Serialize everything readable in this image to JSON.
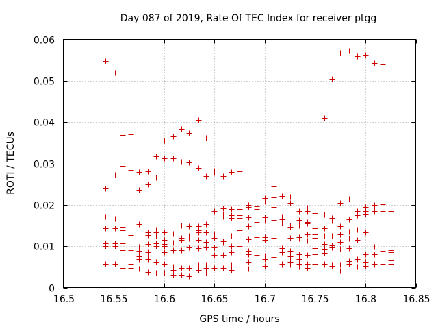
{
  "chart_data": {
    "type": "scatter",
    "title": "Day 087 of 2019, Rate Of TEC Index for receiver ptgg",
    "xlabel": "GPS time / hours",
    "ylabel": "ROTI / TECUs",
    "xlim": [
      16.5,
      16.85
    ],
    "ylim": [
      0,
      0.06
    ],
    "xticks": [
      16.5,
      16.55,
      16.6,
      16.65,
      16.7,
      16.75,
      16.8,
      16.85
    ],
    "xtick_labels": [
      "16.5",
      "16.55",
      "16.6",
      "16.65",
      "16.7",
      "16.75",
      "16.8",
      "16.85"
    ],
    "yticks": [
      0,
      0.01,
      0.02,
      0.03,
      0.04,
      0.05,
      0.06
    ],
    "ytick_labels": [
      "0",
      "0.01",
      "0.02",
      "0.03",
      "0.04",
      "0.05",
      "0.06"
    ],
    "grid": true,
    "marker": "+",
    "color": "#cc0000",
    "series": [
      {
        "name": "ROTI",
        "points": [
          [
            16.542,
            0.0547
          ],
          [
            16.542,
            0.0239
          ],
          [
            16.542,
            0.0172
          ],
          [
            16.542,
            0.0143
          ],
          [
            16.542,
            0.0107
          ],
          [
            16.542,
            0.01
          ],
          [
            16.542,
            0.0058
          ],
          [
            16.551,
            0.0519
          ],
          [
            16.551,
            0.0273
          ],
          [
            16.551,
            0.0166
          ],
          [
            16.551,
            0.0143
          ],
          [
            16.551,
            0.0107
          ],
          [
            16.551,
            0.01
          ],
          [
            16.551,
            0.0058
          ],
          [
            16.559,
            0.0369
          ],
          [
            16.559,
            0.0295
          ],
          [
            16.559,
            0.0146
          ],
          [
            16.559,
            0.0138
          ],
          [
            16.559,
            0.0107
          ],
          [
            16.559,
            0.009
          ],
          [
            16.559,
            0.0048
          ],
          [
            16.567,
            0.0371
          ],
          [
            16.567,
            0.0284
          ],
          [
            16.567,
            0.015
          ],
          [
            16.567,
            0.0126
          ],
          [
            16.567,
            0.0108
          ],
          [
            16.567,
            0.009
          ],
          [
            16.567,
            0.0058
          ],
          [
            16.567,
            0.0048
          ],
          [
            16.575,
            0.028
          ],
          [
            16.575,
            0.0237
          ],
          [
            16.575,
            0.0153
          ],
          [
            16.575,
            0.0098
          ],
          [
            16.575,
            0.0088
          ],
          [
            16.575,
            0.0075
          ],
          [
            16.575,
            0.0068
          ],
          [
            16.575,
            0.0045
          ],
          [
            16.584,
            0.0281
          ],
          [
            16.584,
            0.025
          ],
          [
            16.584,
            0.0133
          ],
          [
            16.584,
            0.0127
          ],
          [
            16.584,
            0.0105
          ],
          [
            16.584,
            0.0085
          ],
          [
            16.584,
            0.0072
          ],
          [
            16.584,
            0.0068
          ],
          [
            16.584,
            0.0037
          ],
          [
            16.592,
            0.0318
          ],
          [
            16.592,
            0.0266
          ],
          [
            16.592,
            0.014
          ],
          [
            16.592,
            0.0133
          ],
          [
            16.592,
            0.0125
          ],
          [
            16.592,
            0.0107
          ],
          [
            16.592,
            0.01
          ],
          [
            16.592,
            0.0062
          ],
          [
            16.592,
            0.0035
          ],
          [
            16.6,
            0.0355
          ],
          [
            16.6,
            0.0313
          ],
          [
            16.6,
            0.0133
          ],
          [
            16.6,
            0.0115
          ],
          [
            16.6,
            0.0105
          ],
          [
            16.6,
            0.01
          ],
          [
            16.6,
            0.0085
          ],
          [
            16.6,
            0.0058
          ],
          [
            16.6,
            0.0035
          ],
          [
            16.609,
            0.0366
          ],
          [
            16.609,
            0.0312
          ],
          [
            16.609,
            0.013
          ],
          [
            16.609,
            0.0108
          ],
          [
            16.609,
            0.009
          ],
          [
            16.609,
            0.005
          ],
          [
            16.609,
            0.0042
          ],
          [
            16.609,
            0.003
          ],
          [
            16.617,
            0.0384
          ],
          [
            16.617,
            0.0304
          ],
          [
            16.617,
            0.015
          ],
          [
            16.617,
            0.012
          ],
          [
            16.617,
            0.0115
          ],
          [
            16.617,
            0.009
          ],
          [
            16.617,
            0.0048
          ],
          [
            16.617,
            0.003
          ],
          [
            16.625,
            0.0373
          ],
          [
            16.625,
            0.0302
          ],
          [
            16.625,
            0.0149
          ],
          [
            16.625,
            0.0125
          ],
          [
            16.625,
            0.0118
          ],
          [
            16.625,
            0.0097
          ],
          [
            16.625,
            0.0048
          ],
          [
            16.625,
            0.0027
          ],
          [
            16.634,
            0.0405
          ],
          [
            16.634,
            0.029
          ],
          [
            16.634,
            0.0148
          ],
          [
            16.634,
            0.0138
          ],
          [
            16.634,
            0.0133
          ],
          [
            16.634,
            0.0115
          ],
          [
            16.634,
            0.0095
          ],
          [
            16.634,
            0.0055
          ],
          [
            16.634,
            0.0042
          ],
          [
            16.642,
            0.0362
          ],
          [
            16.642,
            0.027
          ],
          [
            16.642,
            0.0153
          ],
          [
            16.642,
            0.0133
          ],
          [
            16.642,
            0.011
          ],
          [
            16.642,
            0.0097
          ],
          [
            16.642,
            0.0055
          ],
          [
            16.642,
            0.0048
          ],
          [
            16.642,
            0.0035
          ],
          [
            16.65,
            0.0283
          ],
          [
            16.65,
            0.0277
          ],
          [
            16.65,
            0.0185
          ],
          [
            16.65,
            0.013
          ],
          [
            16.65,
            0.012
          ],
          [
            16.65,
            0.0097
          ],
          [
            16.65,
            0.0078
          ],
          [
            16.65,
            0.0048
          ],
          [
            16.659,
            0.027
          ],
          [
            16.659,
            0.0192
          ],
          [
            16.659,
            0.0177
          ],
          [
            16.659,
            0.0171
          ],
          [
            16.659,
            0.0112
          ],
          [
            16.659,
            0.0108
          ],
          [
            16.659,
            0.0078
          ],
          [
            16.659,
            0.0048
          ],
          [
            16.667,
            0.028
          ],
          [
            16.667,
            0.019
          ],
          [
            16.667,
            0.0175
          ],
          [
            16.667,
            0.0168
          ],
          [
            16.667,
            0.0125
          ],
          [
            16.667,
            0.01
          ],
          [
            16.667,
            0.0085
          ],
          [
            16.667,
            0.0055
          ],
          [
            16.667,
            0.0042
          ],
          [
            16.675,
            0.0281
          ],
          [
            16.675,
            0.019
          ],
          [
            16.675,
            0.0175
          ],
          [
            16.675,
            0.0168
          ],
          [
            16.675,
            0.0138
          ],
          [
            16.675,
            0.01
          ],
          [
            16.675,
            0.0077
          ],
          [
            16.675,
            0.0055
          ],
          [
            16.675,
            0.005
          ],
          [
            16.684,
            0.02
          ],
          [
            16.684,
            0.0195
          ],
          [
            16.684,
            0.017
          ],
          [
            16.684,
            0.0148
          ],
          [
            16.684,
            0.0117
          ],
          [
            16.684,
            0.0088
          ],
          [
            16.684,
            0.008
          ],
          [
            16.684,
            0.0062
          ],
          [
            16.684,
            0.0045
          ],
          [
            16.692,
            0.022
          ],
          [
            16.692,
            0.0197
          ],
          [
            16.692,
            0.019
          ],
          [
            16.692,
            0.0158
          ],
          [
            16.692,
            0.0122
          ],
          [
            16.692,
            0.0098
          ],
          [
            16.692,
            0.0078
          ],
          [
            16.692,
            0.0072
          ],
          [
            16.692,
            0.006
          ],
          [
            16.7,
            0.0217
          ],
          [
            16.7,
            0.0208
          ],
          [
            16.7,
            0.017
          ],
          [
            16.7,
            0.0162
          ],
          [
            16.7,
            0.0122
          ],
          [
            16.7,
            0.0115
          ],
          [
            16.7,
            0.0077
          ],
          [
            16.7,
            0.0068
          ],
          [
            16.7,
            0.0053
          ],
          [
            16.709,
            0.0245
          ],
          [
            16.709,
            0.0218
          ],
          [
            16.709,
            0.0195
          ],
          [
            16.709,
            0.0163
          ],
          [
            16.709,
            0.0125
          ],
          [
            16.709,
            0.012
          ],
          [
            16.709,
            0.0073
          ],
          [
            16.709,
            0.006
          ],
          [
            16.709,
            0.0055
          ],
          [
            16.717,
            0.0222
          ],
          [
            16.717,
            0.0172
          ],
          [
            16.717,
            0.0165
          ],
          [
            16.717,
            0.0157
          ],
          [
            16.717,
            0.0095
          ],
          [
            16.717,
            0.0085
          ],
          [
            16.717,
            0.0057
          ],
          [
            16.717,
            0.0055
          ],
          [
            16.725,
            0.0219
          ],
          [
            16.725,
            0.0205
          ],
          [
            16.725,
            0.015
          ],
          [
            16.725,
            0.0147
          ],
          [
            16.725,
            0.012
          ],
          [
            16.725,
            0.0088
          ],
          [
            16.725,
            0.0075
          ],
          [
            16.725,
            0.0062
          ],
          [
            16.725,
            0.0055
          ],
          [
            16.734,
            0.0185
          ],
          [
            16.734,
            0.0163
          ],
          [
            16.734,
            0.015
          ],
          [
            16.734,
            0.0122
          ],
          [
            16.734,
            0.0118
          ],
          [
            16.734,
            0.008
          ],
          [
            16.734,
            0.0068
          ],
          [
            16.734,
            0.0058
          ],
          [
            16.734,
            0.005
          ],
          [
            16.742,
            0.0193
          ],
          [
            16.742,
            0.0185
          ],
          [
            16.742,
            0.0158
          ],
          [
            16.742,
            0.0155
          ],
          [
            16.742,
            0.0128
          ],
          [
            16.742,
            0.0113
          ],
          [
            16.742,
            0.0078
          ],
          [
            16.742,
            0.0058
          ],
          [
            16.742,
            0.0048
          ],
          [
            16.75,
            0.0203
          ],
          [
            16.75,
            0.018
          ],
          [
            16.75,
            0.0143
          ],
          [
            16.75,
            0.0128
          ],
          [
            16.75,
            0.012
          ],
          [
            16.75,
            0.0095
          ],
          [
            16.75,
            0.008
          ],
          [
            16.75,
            0.0058
          ],
          [
            16.75,
            0.005
          ],
          [
            16.759,
            0.041
          ],
          [
            16.759,
            0.0177
          ],
          [
            16.759,
            0.0143
          ],
          [
            16.759,
            0.0125
          ],
          [
            16.759,
            0.0105
          ],
          [
            16.759,
            0.0092
          ],
          [
            16.759,
            0.0083
          ],
          [
            16.759,
            0.0058
          ],
          [
            16.759,
            0.0055
          ],
          [
            16.767,
            0.0505
          ],
          [
            16.767,
            0.0168
          ],
          [
            16.767,
            0.0162
          ],
          [
            16.767,
            0.0125
          ],
          [
            16.767,
            0.0102
          ],
          [
            16.767,
            0.0097
          ],
          [
            16.767,
            0.0055
          ],
          [
            16.767,
            0.0052
          ],
          [
            16.775,
            0.0568
          ],
          [
            16.775,
            0.0205
          ],
          [
            16.775,
            0.0148
          ],
          [
            16.775,
            0.0128
          ],
          [
            16.775,
            0.011
          ],
          [
            16.775,
            0.0093
          ],
          [
            16.775,
            0.0055
          ],
          [
            16.775,
            0.004
          ],
          [
            16.784,
            0.0572
          ],
          [
            16.784,
            0.0215
          ],
          [
            16.784,
            0.0165
          ],
          [
            16.784,
            0.0135
          ],
          [
            16.784,
            0.0118
          ],
          [
            16.784,
            0.0095
          ],
          [
            16.784,
            0.0063
          ],
          [
            16.784,
            0.0058
          ],
          [
            16.792,
            0.056
          ],
          [
            16.792,
            0.0185
          ],
          [
            16.792,
            0.0175
          ],
          [
            16.792,
            0.014
          ],
          [
            16.792,
            0.0115
          ],
          [
            16.792,
            0.0068
          ],
          [
            16.792,
            0.005
          ],
          [
            16.8,
            0.0563
          ],
          [
            16.8,
            0.0195
          ],
          [
            16.8,
            0.0185
          ],
          [
            16.8,
            0.0178
          ],
          [
            16.8,
            0.0133
          ],
          [
            16.8,
            0.008
          ],
          [
            16.8,
            0.0062
          ],
          [
            16.8,
            0.0052
          ],
          [
            16.809,
            0.0543
          ],
          [
            16.809,
            0.02
          ],
          [
            16.809,
            0.0188
          ],
          [
            16.809,
            0.0185
          ],
          [
            16.809,
            0.0098
          ],
          [
            16.809,
            0.008
          ],
          [
            16.809,
            0.0058
          ],
          [
            16.809,
            0.0055
          ],
          [
            16.817,
            0.054
          ],
          [
            16.817,
            0.0202
          ],
          [
            16.817,
            0.0198
          ],
          [
            16.817,
            0.0185
          ],
          [
            16.817,
            0.0088
          ],
          [
            16.817,
            0.0082
          ],
          [
            16.817,
            0.0058
          ],
          [
            16.817,
            0.0055
          ],
          [
            16.825,
            0.0493
          ],
          [
            16.825,
            0.023
          ],
          [
            16.825,
            0.022
          ],
          [
            16.825,
            0.0185
          ],
          [
            16.825,
            0.009
          ],
          [
            16.825,
            0.0085
          ],
          [
            16.825,
            0.0065
          ],
          [
            16.825,
            0.0058
          ],
          [
            16.825,
            0.005
          ]
        ]
      }
    ]
  }
}
